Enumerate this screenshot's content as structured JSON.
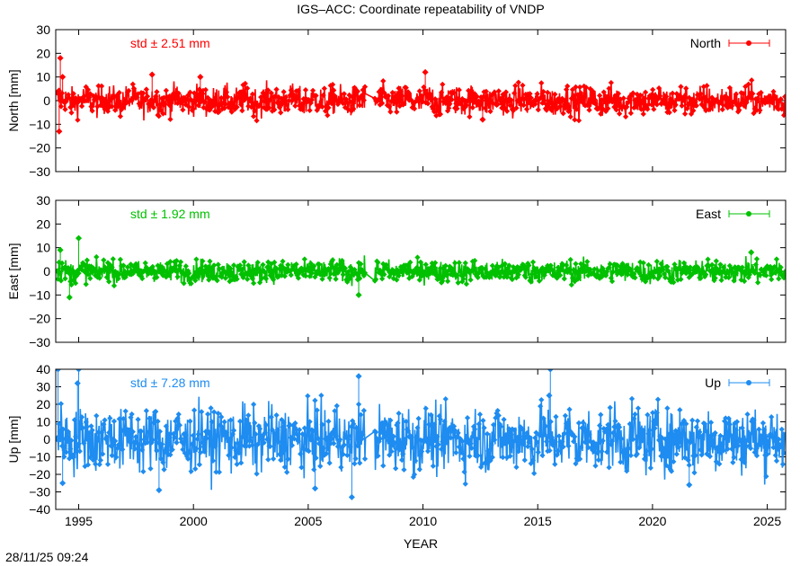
{
  "title": "IGS–ACC: Coordinate repeatability of VNDP",
  "timestamp": "28/11/25 09:24",
  "chart_data": [
    {
      "type": "scatter",
      "component": "north",
      "ylabel": "North [mm]",
      "legend": "North",
      "legend_position": "top-right",
      "std_label": "std ± 2.51 mm",
      "color": "#ff0000",
      "ylim": [
        -30,
        30
      ],
      "yticks": [
        -30,
        -20,
        -10,
        0,
        10,
        20,
        30
      ],
      "xlim": [
        1994.0,
        2025.8
      ],
      "noise_amplitude": 2.51,
      "gap": [
        2007.5,
        2007.9
      ],
      "outliers": [
        [
          1994.2,
          18
        ],
        [
          1994.15,
          -13
        ],
        [
          1994.3,
          10
        ],
        [
          2010.1,
          12
        ],
        [
          2012.6,
          -8
        ],
        [
          2000.3,
          10
        ],
        [
          1998.2,
          11
        ]
      ]
    },
    {
      "type": "scatter",
      "component": "east",
      "ylabel": "East [mm]",
      "legend": "East",
      "legend_position": "top-right",
      "std_label": "std ± 1.92 mm",
      "color": "#00c000",
      "ylim": [
        -30,
        30
      ],
      "yticks": [
        -30,
        -20,
        -10,
        0,
        10,
        20,
        30
      ],
      "xlim": [
        1994.0,
        2025.8
      ],
      "noise_amplitude": 1.92,
      "gap": [
        2007.5,
        2007.9
      ],
      "outliers": [
        [
          1995.0,
          14
        ],
        [
          1994.6,
          -11
        ],
        [
          2007.2,
          -10
        ],
        [
          1994.2,
          9
        ],
        [
          2024.3,
          8
        ]
      ]
    },
    {
      "type": "scatter",
      "component": "up",
      "ylabel": "Up [mm]",
      "legend": "Up",
      "legend_position": "top-right",
      "std_label": "std ± 7.28 mm",
      "color": "#1e8cf0",
      "ylim": [
        -40,
        40
      ],
      "yticks": [
        -40,
        -30,
        -20,
        -10,
        0,
        10,
        20,
        30,
        40
      ],
      "xlim": [
        1994.0,
        2025.8
      ],
      "noise_amplitude": 7.28,
      "gap": [
        2007.5,
        2007.9
      ],
      "outliers": [
        [
          1994.1,
          40
        ],
        [
          1995.0,
          40
        ],
        [
          1994.95,
          32
        ],
        [
          2007.2,
          36
        ],
        [
          2006.9,
          -33
        ],
        [
          2015.5,
          25
        ],
        [
          2015.55,
          40
        ],
        [
          1998.5,
          -29
        ],
        [
          2005.3,
          -28
        ],
        [
          2021.6,
          -26
        ],
        [
          1994.3,
          -25
        ]
      ]
    }
  ],
  "xaxis": {
    "label": "YEAR",
    "ticks": [
      1995,
      2000,
      2005,
      2010,
      2015,
      2020,
      2025
    ],
    "tick_labels": [
      "1995",
      "2000",
      "2005",
      "2010",
      "2015",
      "2020",
      "2025"
    ]
  }
}
